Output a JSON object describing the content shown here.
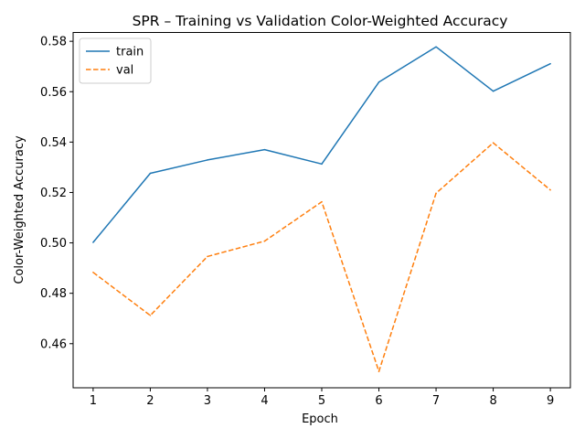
{
  "chart_data": {
    "type": "line",
    "title": "SPR – Training vs Validation Color-Weighted Accuracy",
    "xlabel": "Epoch",
    "ylabel": "Color-Weighted Accuracy",
    "x": [
      1,
      2,
      3,
      4,
      5,
      6,
      7,
      8,
      9
    ],
    "xlim": [
      0.65,
      9.35
    ],
    "ylim": [
      0.4425,
      0.5835
    ],
    "xticks": [
      1,
      2,
      3,
      4,
      5,
      6,
      7,
      8,
      9
    ],
    "yticks": [
      0.46,
      0.48,
      0.5,
      0.52,
      0.54,
      0.56,
      0.58
    ],
    "ytick_labels": [
      "0.46",
      "0.48",
      "0.50",
      "0.52",
      "0.54",
      "0.56",
      "0.58"
    ],
    "grid": false,
    "legend_position": "top-left",
    "series": [
      {
        "name": "train",
        "color": "#1f77b4",
        "style": "solid",
        "values": [
          0.5002,
          0.5276,
          0.5329,
          0.537,
          0.5313,
          0.5638,
          0.5778,
          0.5602,
          0.5711
        ]
      },
      {
        "name": "val",
        "color": "#ff7f0e",
        "style": "dashed",
        "values": [
          0.4883,
          0.4712,
          0.4946,
          0.5007,
          0.5163,
          0.449,
          0.5197,
          0.5397,
          0.521
        ]
      }
    ]
  }
}
